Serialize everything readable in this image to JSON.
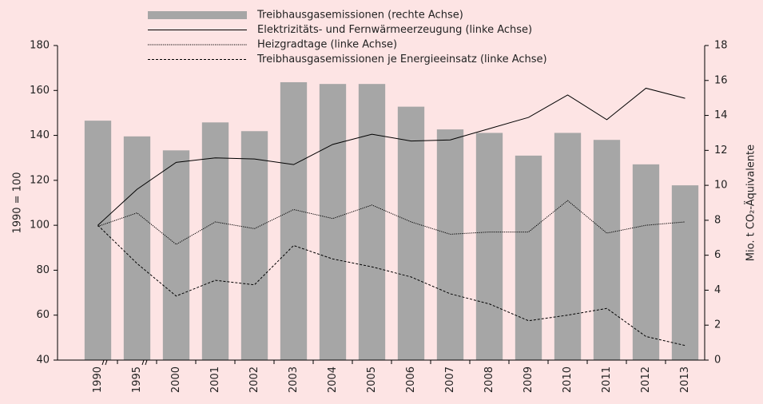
{
  "chart_data": {
    "type": "combo",
    "categories": [
      "1990",
      "1995",
      "2000",
      "2001",
      "2002",
      "2003",
      "2004",
      "2005",
      "2006",
      "2007",
      "2008",
      "2009",
      "2010",
      "2011",
      "2012",
      "2013"
    ],
    "series": [
      {
        "name": "Treibhausgasemissionen (rechte Achse)",
        "type": "bar",
        "axis": "y2",
        "color": "#a6a6a6",
        "values": [
          13.7,
          12.8,
          12.0,
          13.6,
          13.1,
          15.9,
          15.8,
          15.8,
          14.5,
          13.2,
          13.0,
          11.7,
          13.0,
          12.6,
          11.2,
          10.0
        ]
      },
      {
        "name": "Elektrizitäts- und Fernwärmeerzeugung (linke Achse)",
        "type": "line",
        "line_style": "solid",
        "color": "#000000",
        "values": [
          100,
          116,
          128,
          130,
          129.5,
          127,
          136,
          140.5,
          137.5,
          138,
          143,
          148,
          158,
          147,
          161,
          156.5
        ]
      },
      {
        "name": "Heizgradtage (linke Achse)",
        "type": "line",
        "line_style": "dotted",
        "color": "#000000",
        "values": [
          99.5,
          105.5,
          91.5,
          101.5,
          98.5,
          107,
          103,
          109,
          101.5,
          96,
          97,
          97,
          111,
          96.5,
          100,
          101.5
        ]
      },
      {
        "name": "Treibhausgasemissionen je Energieeinsatz (linke Achse)",
        "type": "line",
        "line_style": "dashed",
        "color": "#000000",
        "values": [
          100,
          83,
          68.5,
          75.5,
          73.5,
          91,
          85,
          81.5,
          77,
          69.5,
          65,
          57.5,
          60,
          63,
          50.5,
          46.5
        ]
      }
    ],
    "y_label": "1990 = 100",
    "y2_label": "Mio. t CO₂-Äquivalente",
    "ylim": [
      40,
      180
    ],
    "yticks": [
      40,
      60,
      80,
      100,
      120,
      140,
      160,
      180
    ],
    "y2lim": [
      0,
      18
    ],
    "y2ticks": [
      0,
      2,
      4,
      6,
      8,
      10,
      12,
      14,
      16,
      18
    ]
  }
}
